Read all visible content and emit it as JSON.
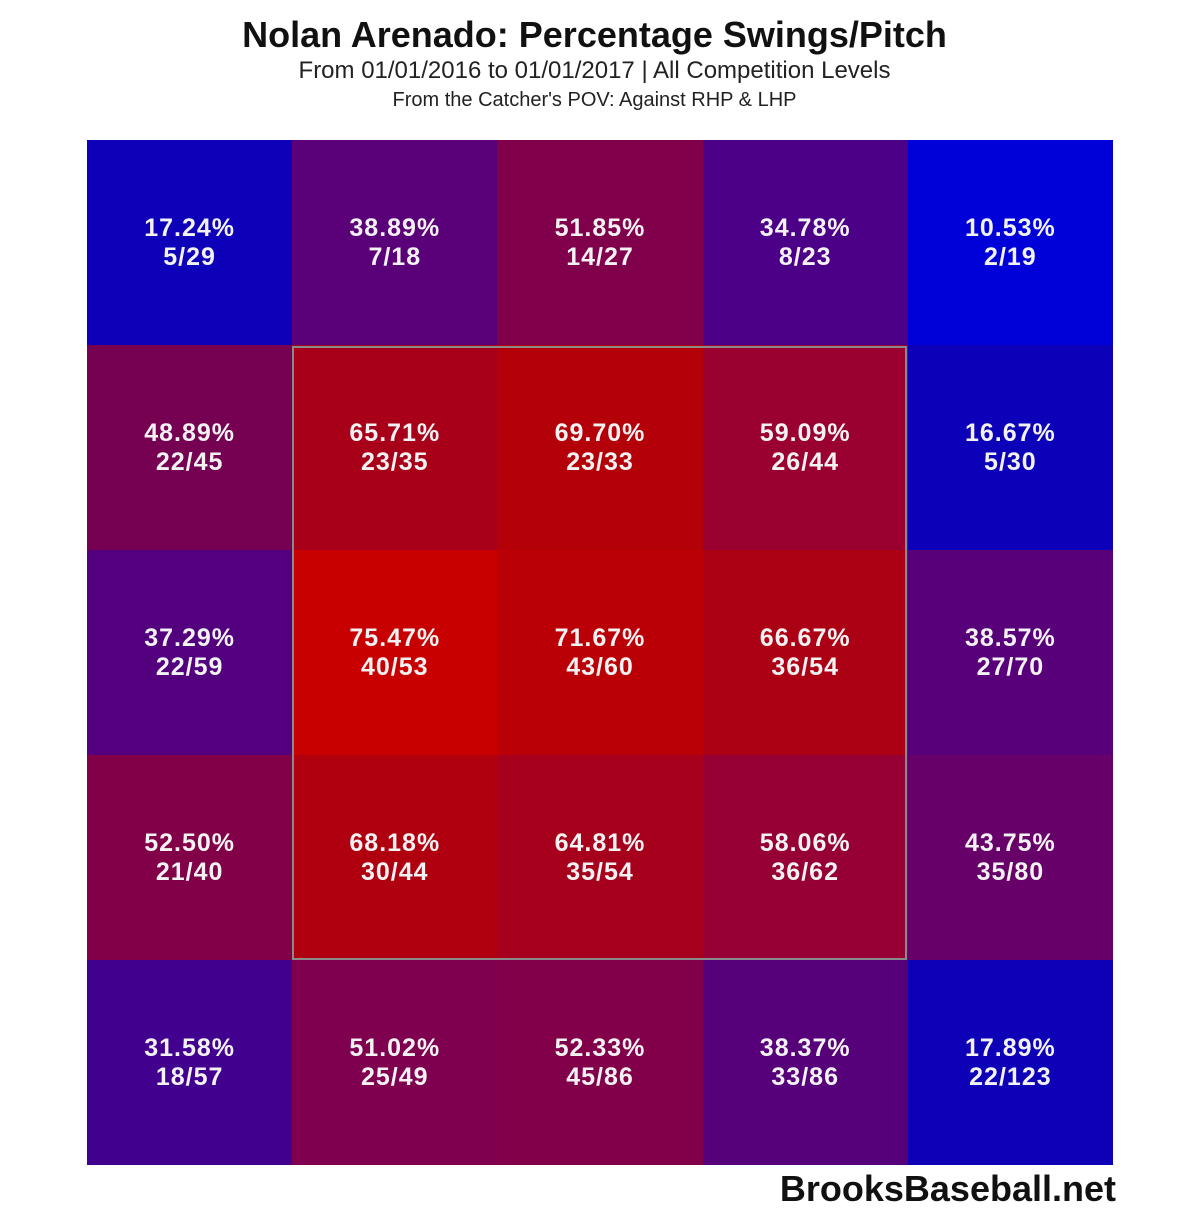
{
  "header": {
    "title": "Nolan Arenado: Percentage Swings/Pitch",
    "subtitle": "From 01/01/2016 to 01/01/2017 | All Competition Levels",
    "subtitle2": "From the Catcher's POV:   Against RHP & LHP"
  },
  "footer": {
    "credit": "BrooksBaseball.net"
  },
  "chart_data": {
    "type": "heatmap",
    "title": "Nolan Arenado: Percentage Swings/Pitch",
    "subtitle": "From 01/01/2016 to 01/01/2017 | All Competition Levels; From the Catcher's POV: Against RHP & LHP",
    "rows": 5,
    "cols": 5,
    "color_scale": {
      "low": "#0000d8",
      "high": "#cc0000"
    },
    "strike_zone": {
      "rows": [
        1,
        3
      ],
      "cols": [
        1,
        3
      ]
    },
    "cells": [
      [
        {
          "pct": "17.24%",
          "frac": "5/29",
          "color": "#0d00b8"
        },
        {
          "pct": "38.89%",
          "frac": "7/18",
          "color": "#5a0078"
        },
        {
          "pct": "51.85%",
          "frac": "14/27",
          "color": "#80004c"
        },
        {
          "pct": "34.78%",
          "frac": "8/23",
          "color": "#4c0088"
        },
        {
          "pct": "10.53%",
          "frac": "2/19",
          "color": "#0000d8"
        }
      ],
      [
        {
          "pct": "48.89%",
          "frac": "22/45",
          "color": "#760052"
        },
        {
          "pct": "65.71%",
          "frac": "23/35",
          "color": "#a80018"
        },
        {
          "pct": "69.70%",
          "frac": "23/33",
          "color": "#b40008"
        },
        {
          "pct": "59.09%",
          "frac": "26/44",
          "color": "#9a0030"
        },
        {
          "pct": "16.67%",
          "frac": "5/30",
          "color": "#0c00b8"
        }
      ],
      [
        {
          "pct": "37.29%",
          "frac": "22/59",
          "color": "#52007e"
        },
        {
          "pct": "75.47%",
          "frac": "40/53",
          "color": "#c80000"
        },
        {
          "pct": "71.67%",
          "frac": "43/60",
          "color": "#ba0006"
        },
        {
          "pct": "66.67%",
          "frac": "36/54",
          "color": "#ac0014"
        },
        {
          "pct": "38.57%",
          "frac": "27/70",
          "color": "#58007a"
        }
      ],
      [
        {
          "pct": "52.50%",
          "frac": "21/40",
          "color": "#820048"
        },
        {
          "pct": "68.18%",
          "frac": "30/44",
          "color": "#b00010"
        },
        {
          "pct": "64.81%",
          "frac": "35/54",
          "color": "#a6001c"
        },
        {
          "pct": "58.06%",
          "frac": "36/62",
          "color": "#960034"
        },
        {
          "pct": "43.75%",
          "frac": "35/80",
          "color": "#68006a"
        }
      ],
      [
        {
          "pct": "31.58%",
          "frac": "18/57",
          "color": "#42008e"
        },
        {
          "pct": "51.02%",
          "frac": "25/49",
          "color": "#7e004e"
        },
        {
          "pct": "52.33%",
          "frac": "45/86",
          "color": "#82004a"
        },
        {
          "pct": "38.37%",
          "frac": "33/86",
          "color": "#56007a"
        },
        {
          "pct": "17.89%",
          "frac": "22/123",
          "color": "#0e00b6"
        }
      ]
    ]
  }
}
